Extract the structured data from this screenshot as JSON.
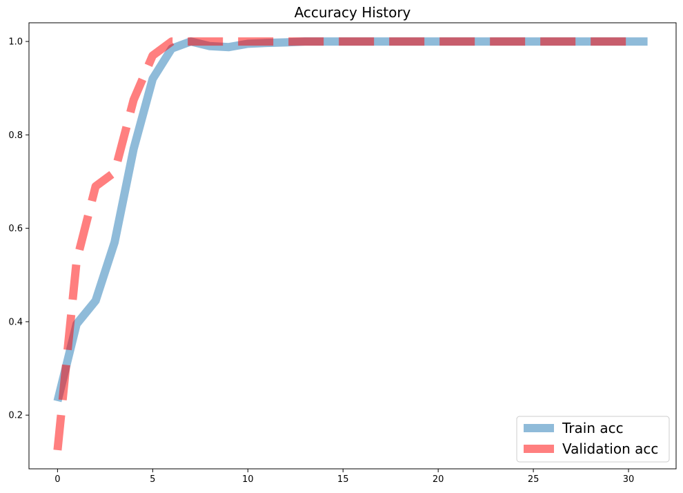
{
  "chart_data": {
    "type": "line",
    "title": "Accuracy History",
    "xlabel": "",
    "ylabel": "",
    "xlim": [
      -1.5,
      32.5
    ],
    "ylim": [
      0.085,
      1.04
    ],
    "x_ticks": [
      0,
      5,
      10,
      15,
      20,
      25,
      30
    ],
    "x_tick_labels": [
      "0",
      "5",
      "10",
      "15",
      "20",
      "25",
      "30"
    ],
    "y_ticks": [
      0.2,
      0.4,
      0.6,
      0.8,
      1.0
    ],
    "y_tick_labels": [
      "0.2",
      "0.4",
      "0.6",
      "0.8",
      "1.0"
    ],
    "grid": false,
    "legend_position": "bottom-right",
    "series": [
      {
        "name": "Train acc",
        "color": "#1f77b4",
        "opacity": 0.5,
        "line_style": "solid",
        "x": [
          0,
          1,
          2,
          3,
          4,
          5,
          6,
          7,
          8,
          9,
          10,
          11,
          12,
          13,
          14,
          15,
          16,
          17,
          18,
          19,
          20,
          21,
          22,
          23,
          24,
          25,
          26,
          27,
          28,
          29,
          30,
          31
        ],
        "values": [
          0.23,
          0.395,
          0.445,
          0.57,
          0.77,
          0.92,
          0.985,
          1.0,
          0.99,
          0.988,
          0.995,
          0.997,
          0.998,
          1.0,
          1.0,
          1.0,
          1.0,
          1.0,
          1.0,
          1.0,
          1.0,
          1.0,
          1.0,
          1.0,
          1.0,
          1.0,
          1.0,
          1.0,
          1.0,
          1.0,
          1.0,
          1.0
        ]
      },
      {
        "name": "Validation acc",
        "color": "#ff0000",
        "opacity": 0.5,
        "line_style": "dashed",
        "x": [
          0,
          1,
          2,
          3,
          4,
          5,
          6,
          7,
          8,
          9,
          10,
          11,
          12,
          13,
          14,
          15,
          16,
          17,
          18,
          19,
          20,
          21,
          22,
          23,
          24,
          25,
          26,
          27,
          28,
          29,
          30
        ],
        "values": [
          0.125,
          0.53,
          0.69,
          0.72,
          0.875,
          0.97,
          1.0,
          1.0,
          1.0,
          1.0,
          1.0,
          1.0,
          1.0,
          1.0,
          1.0,
          1.0,
          1.0,
          1.0,
          1.0,
          1.0,
          1.0,
          1.0,
          1.0,
          1.0,
          1.0,
          1.0,
          1.0,
          1.0,
          1.0,
          1.0,
          1.0
        ]
      }
    ]
  }
}
